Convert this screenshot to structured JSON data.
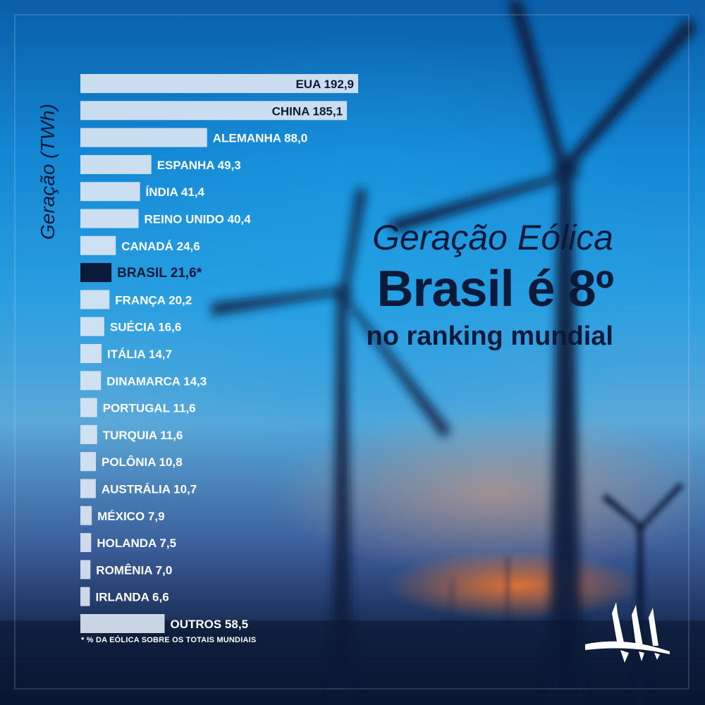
{
  "headline": {
    "line1": "Geração Eólica",
    "line2": "Brasil é 8º",
    "line3": "no ranking mundial"
  },
  "footnote": "* % DA EÓLICA SOBRE OS TOTAIS MUNDIAIS",
  "colors": {
    "bar": "#dfe8f4",
    "highlight_bar": "#0b1a3a",
    "text_dark": "#0b1a3a",
    "text_light": "#ffffff"
  },
  "logo_icon": "wind-turbine-logo-icon",
  "chart_data": {
    "type": "bar",
    "orientation": "horizontal",
    "ylabel": "Geração (TWh)",
    "xlabel": "",
    "title": "",
    "grid": false,
    "legend": "none",
    "xlim": [
      0,
      192.9
    ],
    "highlight": "BRASIL",
    "categories": [
      "EUA",
      "CHINA",
      "ALEMANHA",
      "ESPANHA",
      "ÍNDIA",
      "REINO UNIDO",
      "CANADÁ",
      "BRASIL",
      "FRANÇA",
      "SUÉCIA",
      "ITÁLIA",
      "DINAMARCA",
      "PORTUGAL",
      "TURQUIA",
      "POLÔNIA",
      "AUSTRÁLIA",
      "MÉXICO",
      "HOLANDA",
      "ROMÊNIA",
      "IRLANDA",
      "OUTROS"
    ],
    "values": [
      192.9,
      185.1,
      88.0,
      49.3,
      41.4,
      40.4,
      24.6,
      21.6,
      20.2,
      16.6,
      14.7,
      14.3,
      11.6,
      11.6,
      10.8,
      10.7,
      7.9,
      7.5,
      7.0,
      6.6,
      58.5
    ],
    "labels": [
      "EUA 192,9",
      "CHINA 185,1",
      "ALEMANHA 88,0",
      "ESPANHA 49,3",
      "ÍNDIA 41,4",
      "REINO UNIDO 40,4",
      "CANADÁ 24,6",
      "BRASIL 21,6*",
      "FRANÇA 20,2",
      "SUÉCIA 16,6",
      "ITÁLIA 14,7",
      "DINAMARCA 14,3",
      "PORTUGAL 11,6",
      "TURQUIA 11,6",
      "POLÔNIA 10,8",
      "AUSTRÁLIA 10,7",
      "MÉXICO 7,9",
      "HOLANDA 7,5",
      "ROMÊNIA 7,0",
      "IRLANDA 6,6",
      "OUTROS 58,5"
    ]
  }
}
